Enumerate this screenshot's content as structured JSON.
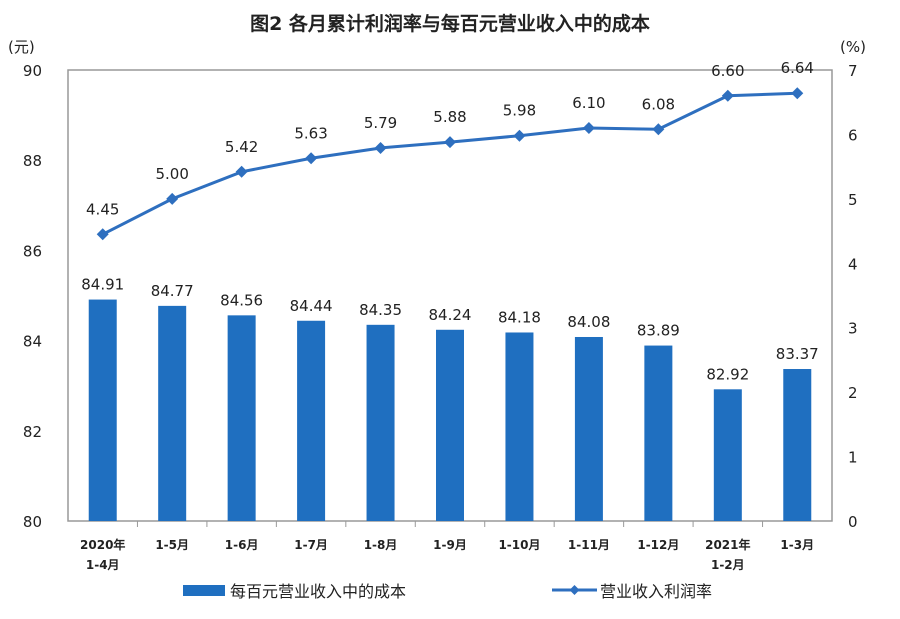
{
  "chart_data": {
    "type": "bar+line",
    "title": "图2  各月累计利润率与每百元营业收入中的成本",
    "left_axis": {
      "unit_label": "(元)",
      "ylim": [
        80,
        90
      ],
      "ticks": [
        "80",
        "82",
        "84",
        "86",
        "88",
        "90"
      ]
    },
    "right_axis": {
      "unit_label": "(%)",
      "ylim": [
        0,
        7
      ],
      "ticks": [
        "0",
        "1",
        "2",
        "3",
        "4",
        "5",
        "6",
        "7"
      ]
    },
    "categories": [
      [
        "2020年",
        "1-4月"
      ],
      [
        "1-5月"
      ],
      [
        "1-6月"
      ],
      [
        "1-7月"
      ],
      [
        "1-8月"
      ],
      [
        "1-9月"
      ],
      [
        "1-10月"
      ],
      [
        "1-11月"
      ],
      [
        "1-12月"
      ],
      [
        "2021年",
        "1-2月"
      ],
      [
        "1-3月"
      ]
    ],
    "series": [
      {
        "name": "每百元营业收入中的成本",
        "type": "bar",
        "axis": "left",
        "color": "#1f6fc0",
        "values": [
          84.91,
          84.77,
          84.56,
          84.44,
          84.35,
          84.24,
          84.18,
          84.08,
          83.89,
          82.92,
          83.37
        ],
        "labels": [
          "84.91",
          "84.77",
          "84.56",
          "84.44",
          "84.35",
          "84.24",
          "84.18",
          "84.08",
          "83.89",
          "82.92",
          "83.37"
        ]
      },
      {
        "name": "营业收入利润率",
        "type": "line",
        "axis": "right",
        "color": "#2e6fbf",
        "values": [
          4.45,
          5.0,
          5.42,
          5.63,
          5.79,
          5.88,
          5.98,
          6.1,
          6.08,
          6.6,
          6.64
        ],
        "labels": [
          "4.45",
          "5.00",
          "5.42",
          "5.63",
          "5.79",
          "5.88",
          "5.98",
          "6.10",
          "6.08",
          "6.60",
          "6.64"
        ]
      }
    ],
    "grid": false,
    "legend_placement": "bottom"
  }
}
